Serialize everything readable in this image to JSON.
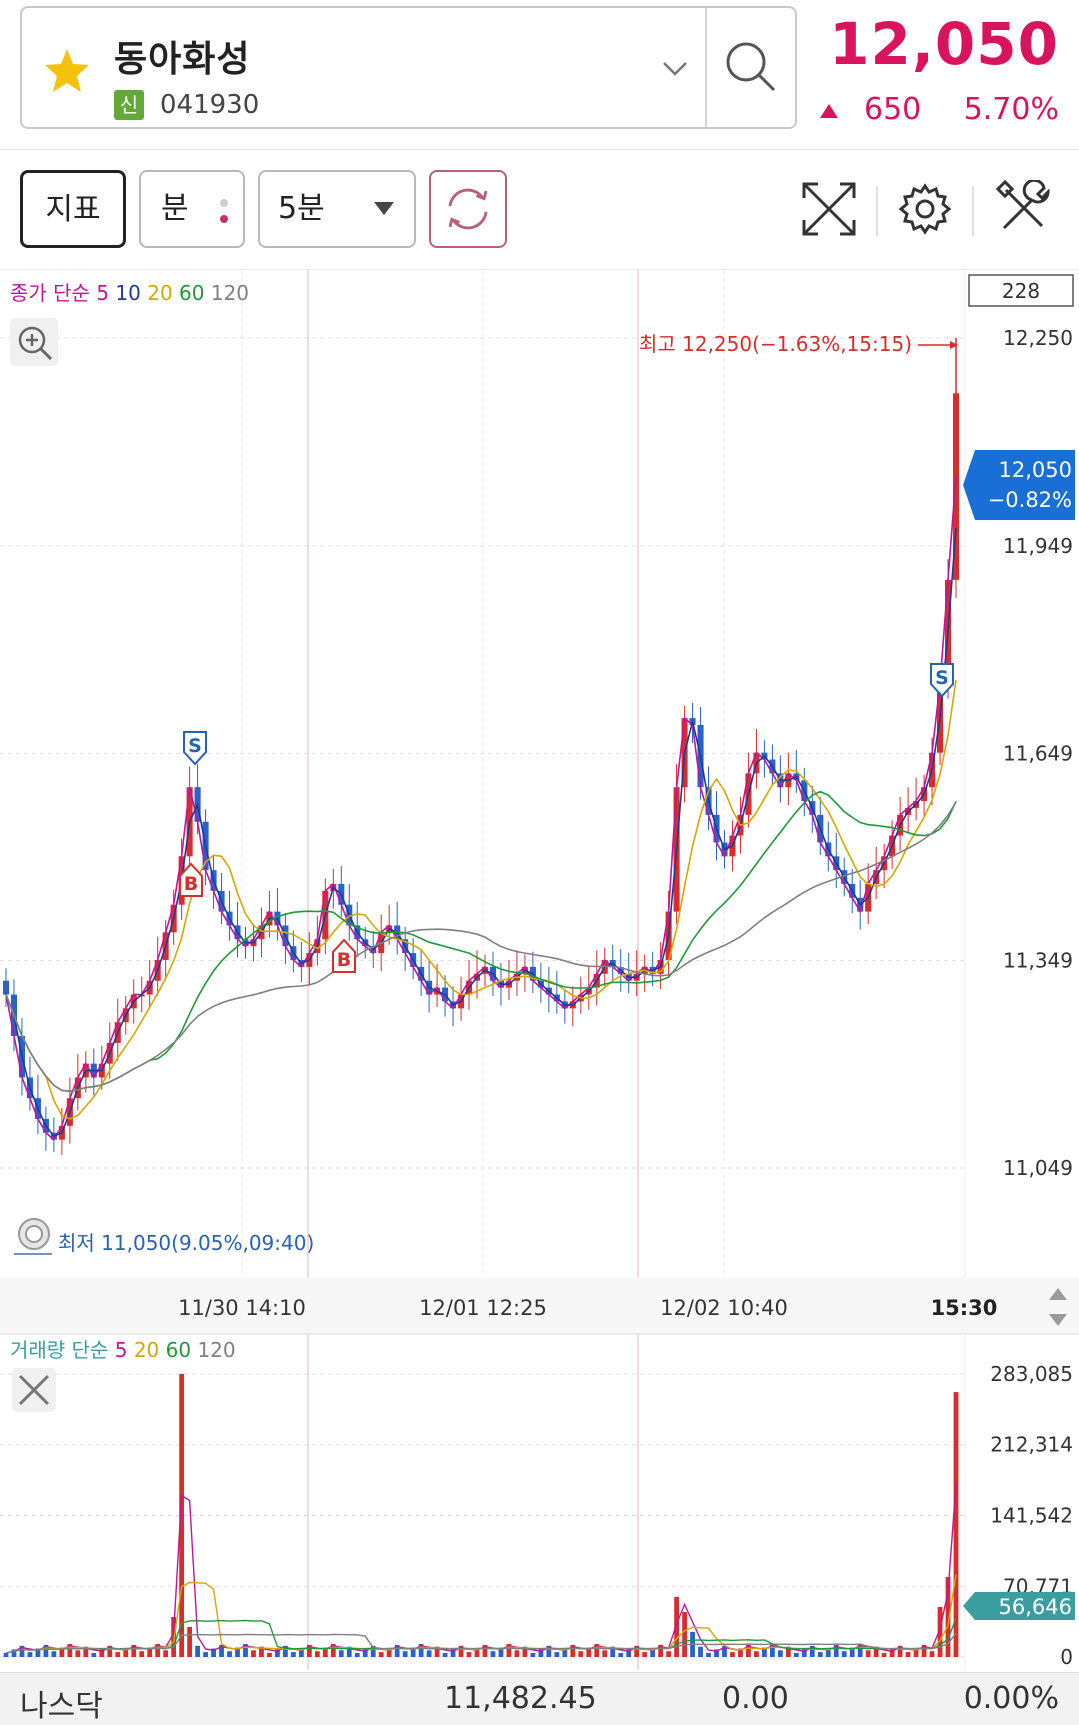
{
  "stock": {
    "name": "동아화성",
    "market_badge": "신",
    "code": "041930",
    "price": "12,050",
    "change": "650",
    "change_rate": "5.70%",
    "accent_color": "#d9145e"
  },
  "toolbar": {
    "indicator_label": "지표",
    "unit_label": "분",
    "interval_label": "5분",
    "icons": [
      "refresh-icon",
      "fullscreen-icon",
      "gear-icon",
      "tools-icon"
    ]
  },
  "price_chart": {
    "legend_prefix": "종가 단순",
    "ma_periods": [
      {
        "label": "5",
        "color": "#c0159c"
      },
      {
        "label": "10",
        "color": "#1f3a9b"
      },
      {
        "label": "20",
        "color": "#d6a700"
      },
      {
        "label": "60",
        "color": "#1f9a3a"
      },
      {
        "label": "120",
        "color": "#808080"
      }
    ],
    "count_box": "228",
    "high_label": "최고 12,250(−1.63%,15:15)",
    "low_label": "최저 11,050(9.05%,09:40)",
    "current_price_tag": "12,050",
    "current_rate_tag": "−0.82%",
    "y_ticks": [
      "12,250",
      "11,949",
      "11,649",
      "11,349",
      "11,049"
    ],
    "x_ticks": [
      "11/30 14:10",
      "12/01 12:25",
      "12/02 10:40"
    ],
    "x_end_label": "15:30",
    "signals": [
      {
        "type": "S",
        "color": "#1f66b5"
      },
      {
        "type": "B",
        "color": "#d62d2d"
      },
      {
        "type": "B",
        "color": "#d62d2d"
      },
      {
        "type": "S",
        "color": "#1f66b5"
      }
    ]
  },
  "volume_chart": {
    "legend_prefix": "거래량 단순",
    "ma_periods": [
      {
        "label": "5",
        "color": "#c0159c"
      },
      {
        "label": "20",
        "color": "#d6a700"
      },
      {
        "label": "60",
        "color": "#1f9a3a"
      },
      {
        "label": "120",
        "color": "#808080"
      }
    ],
    "y_ticks": [
      "283,085",
      "212,314",
      "141,542",
      "70,771",
      "0"
    ],
    "current_volume_tag": "56,646"
  },
  "footer": {
    "index_name": "나스닥",
    "index_value": "11,482.45",
    "index_change": "0.00",
    "index_rate": "0.00%"
  },
  "chart_data": [
    {
      "type": "candlestick",
      "title": "",
      "interval": "5분",
      "y_range": [
        11049,
        12250
      ],
      "y_ticks": [
        12250,
        11949,
        11649,
        11349,
        11049
      ],
      "x_ticks": [
        "11/30 14:10",
        "12/01 12:25",
        "12/02 10:40",
        "15:30"
      ],
      "high": {
        "value": 12250,
        "rate": "-1.63%",
        "time": "15:15"
      },
      "low": {
        "value": 11050,
        "rate": "9.05%",
        "time": "09:40"
      },
      "last_close": 12050,
      "close_profile": [
        11300,
        11240,
        11180,
        11150,
        11120,
        11100,
        11090,
        11110,
        11150,
        11180,
        11200,
        11180,
        11200,
        11230,
        11260,
        11280,
        11300,
        11300,
        11320,
        11350,
        11390,
        11430,
        11500,
        11600,
        11550,
        11480,
        11450,
        11420,
        11400,
        11380,
        11370,
        11380,
        11400,
        11420,
        11400,
        11370,
        11350,
        11340,
        11360,
        11380,
        11450,
        11460,
        11430,
        11400,
        11380,
        11370,
        11360,
        11390,
        11400,
        11380,
        11360,
        11340,
        11320,
        11300,
        11310,
        11290,
        11280,
        11300,
        11320,
        11330,
        11340,
        11320,
        11310,
        11320,
        11330,
        11340,
        11320,
        11310,
        11300,
        11290,
        11280,
        11290,
        11300,
        11310,
        11330,
        11350,
        11340,
        11330,
        11320,
        11330,
        11340,
        11330,
        11350,
        11420,
        11600,
        11700,
        11690,
        11600,
        11560,
        11520,
        11500,
        11530,
        11560,
        11620,
        11650,
        11640,
        11620,
        11600,
        11620,
        11610,
        11580,
        11560,
        11520,
        11500,
        11480,
        11460,
        11440,
        11420,
        11460,
        11480,
        11500,
        11530,
        11560,
        11570,
        11580,
        11600,
        11650,
        11750,
        11900,
        12050
      ]
    },
    {
      "type": "bar",
      "title": "",
      "y_range": [
        0,
        283085
      ],
      "y_ticks": [
        283085,
        212314,
        141542,
        70771,
        0
      ],
      "last_value": 56646,
      "peaks": [
        {
          "near": "11/30 14:10",
          "value": 283085
        },
        {
          "near": "12/02 10:40",
          "value": 60000
        },
        {
          "near": "15:30",
          "value": 265000
        }
      ]
    }
  ]
}
